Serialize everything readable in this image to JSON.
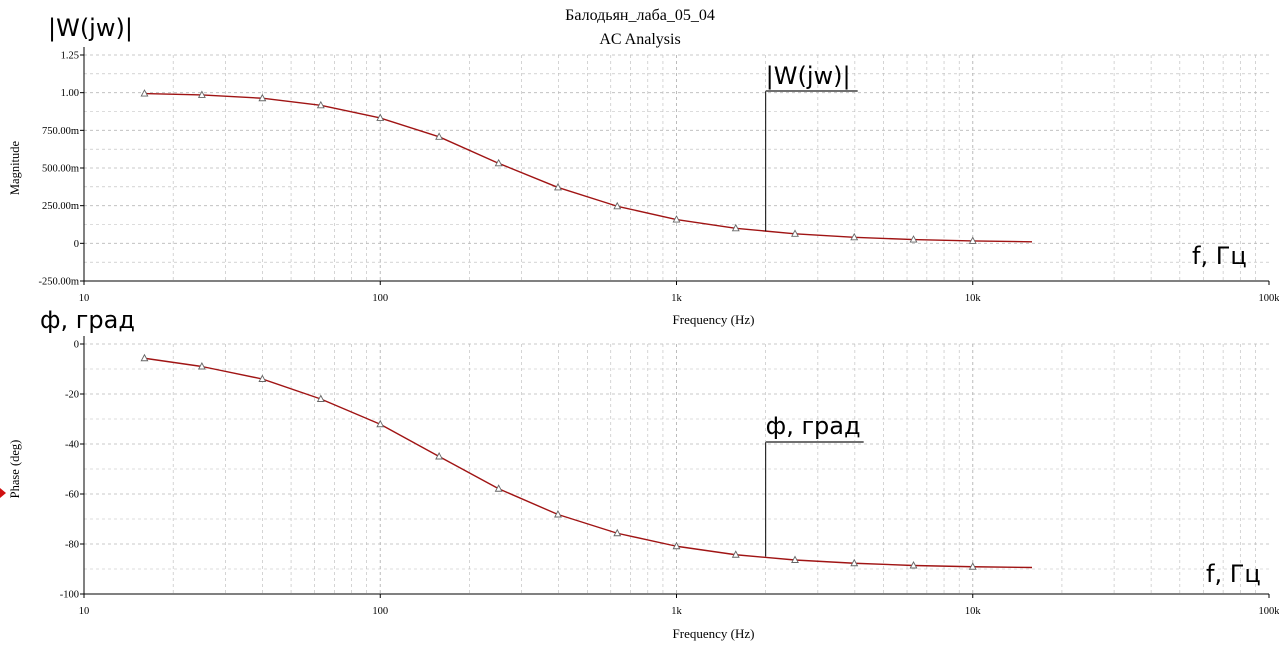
{
  "title": "Балодьян_лаба_05_04",
  "subtitle": "AC Analysis",
  "colors": {
    "curve": "#a01414",
    "grid": "#b9b9b9",
    "axis": "#000000",
    "annotation_line": "#707070",
    "marker": "#666666"
  },
  "chart_data": [
    {
      "type": "line",
      "title": "",
      "xlabel": "Frequency (Hz)",
      "ylabel": "Magnitude",
      "xscale": "log",
      "xlim": [
        10,
        100000
      ],
      "ylim": [
        -0.25,
        1.25
      ],
      "grid": true,
      "xtick_labels": [
        "10",
        "100",
        "1k",
        "10k",
        "100k"
      ],
      "ytick_labels": [
        "1.25",
        "1.00",
        "750.00m",
        "500.00m",
        "250.00m",
        "0",
        "-250.00m"
      ],
      "ytick_values": [
        1.25,
        1.0,
        0.75,
        0.5,
        0.25,
        0,
        -0.25
      ],
      "series": [
        {
          "name": "",
          "x": [
            16,
            25,
            40,
            63,
            100,
            158,
            251,
            398,
            631,
            1000,
            1585,
            2512,
            3981,
            6310,
            10000,
            15849
          ],
          "values": [
            0.994,
            0.985,
            0.963,
            0.916,
            0.832,
            0.707,
            0.531,
            0.371,
            0.246,
            0.158,
            0.1,
            0.063,
            0.04,
            0.025,
            0.016,
            0.01
          ]
        }
      ],
      "marker_x": [
        16,
        25,
        40,
        63,
        100,
        158,
        251,
        398,
        631,
        1000,
        1585,
        2512,
        3981,
        6310,
        10000
      ],
      "annotations": [
        {
          "label": "|W(jw)|",
          "x": 2000,
          "y": 0.08
        },
        {
          "label": "f, Гц"
        }
      ],
      "corner_label": "|W(jw)|"
    },
    {
      "type": "line",
      "title": "",
      "xlabel": "Frequency (Hz)",
      "ylabel": "Phase (deg)",
      "xscale": "log",
      "xlim": [
        10,
        100000
      ],
      "ylim": [
        -100,
        0
      ],
      "grid": true,
      "xtick_labels": [
        "10",
        "100",
        "1k",
        "10k",
        "100k"
      ],
      "ytick_labels": [
        "0",
        "-20",
        "-40",
        "-60",
        "-80",
        "-100"
      ],
      "ytick_values": [
        0,
        -20,
        -40,
        -60,
        -80,
        -100
      ],
      "series": [
        {
          "name": "",
          "x": [
            16,
            25,
            40,
            63,
            100,
            158,
            251,
            398,
            631,
            1000,
            1585,
            2512,
            3981,
            6310,
            10000,
            15849
          ],
          "values": [
            -5.7,
            -9.0,
            -14.0,
            -22.0,
            -32.1,
            -45.0,
            -57.9,
            -68.2,
            -75.7,
            -80.9,
            -84.3,
            -86.4,
            -87.7,
            -88.6,
            -89.1,
            -89.4
          ]
        }
      ],
      "marker_x": [
        16,
        25,
        40,
        63,
        100,
        158,
        251,
        398,
        631,
        1000,
        1585,
        2512,
        3981,
        6310,
        10000
      ],
      "annotations": [
        {
          "label": "ф, град",
          "x": 2000,
          "y": -85
        },
        {
          "label": "f, Гц"
        }
      ],
      "corner_label": "ф, град"
    }
  ]
}
